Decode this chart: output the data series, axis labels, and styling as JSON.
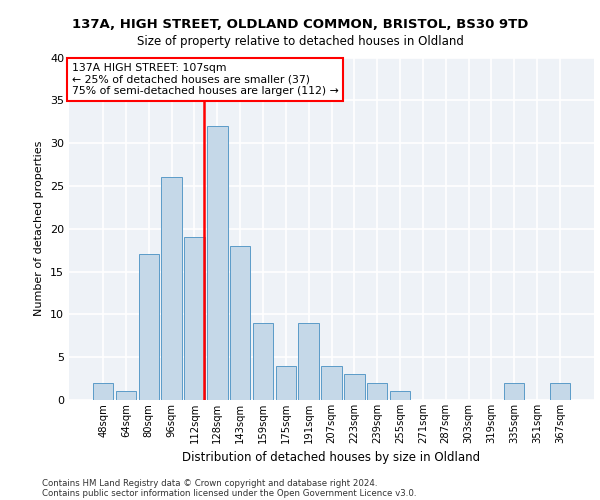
{
  "title1": "137A, HIGH STREET, OLDLAND COMMON, BRISTOL, BS30 9TD",
  "title2": "Size of property relative to detached houses in Oldland",
  "xlabel": "Distribution of detached houses by size in Oldland",
  "ylabel": "Number of detached properties",
  "bar_labels": [
    "48sqm",
    "64sqm",
    "80sqm",
    "96sqm",
    "112sqm",
    "128sqm",
    "143sqm",
    "159sqm",
    "175sqm",
    "191sqm",
    "207sqm",
    "223sqm",
    "239sqm",
    "255sqm",
    "271sqm",
    "287sqm",
    "303sqm",
    "319sqm",
    "335sqm",
    "351sqm",
    "367sqm"
  ],
  "bar_values": [
    2,
    1,
    17,
    26,
    19,
    32,
    18,
    9,
    4,
    9,
    4,
    3,
    2,
    1,
    0,
    0,
    0,
    0,
    2,
    0,
    2
  ],
  "bar_color": "#c5d8e8",
  "bar_edgecolor": "#5b9bc8",
  "vline_index": 4.43,
  "vline_color": "red",
  "annotation_text": "137A HIGH STREET: 107sqm\n← 25% of detached houses are smaller (37)\n75% of semi-detached houses are larger (112) →",
  "annotation_box_color": "white",
  "annotation_box_edgecolor": "red",
  "ylim": [
    0,
    40
  ],
  "yticks": [
    0,
    5,
    10,
    15,
    20,
    25,
    30,
    35,
    40
  ],
  "bg_color": "#eef2f7",
  "footnote1": "Contains HM Land Registry data © Crown copyright and database right 2024.",
  "footnote2": "Contains public sector information licensed under the Open Government Licence v3.0."
}
